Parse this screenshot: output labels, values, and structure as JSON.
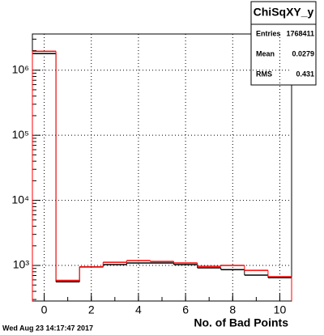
{
  "chart_data": {
    "type": "histogram",
    "title": "ChiSqXY_y",
    "xlabel": "No. of Bad Points",
    "timestamp": "Wed Aug 23 14:17:47 2017",
    "bins": [
      -0.5,
      0.5,
      1.5,
      2.5,
      3.5,
      4.5,
      5.5,
      6.5,
      7.5,
      8.5,
      9.5,
      10.5
    ],
    "series": [
      {
        "color": "#000000",
        "values": [
          1800000,
          560,
          950,
          1030,
          1090,
          1090,
          1030,
          920,
          860,
          710,
          650
        ]
      },
      {
        "color": "#ff0000",
        "values": [
          1950000,
          590,
          950,
          1120,
          1190,
          1150,
          1090,
          970,
          1000,
          840,
          670
        ]
      }
    ],
    "xlim": [
      -0.5,
      10.5
    ],
    "xticks": [
      0,
      2,
      4,
      6,
      8,
      10
    ],
    "ylim": [
      284,
      3600000
    ],
    "log_y": true,
    "grid": true,
    "yticks": [
      {
        "value": 1000,
        "label": "10³"
      },
      {
        "value": 10000,
        "label": "10⁴"
      },
      {
        "value": 100000,
        "label": "10⁵"
      },
      {
        "value": 1000000,
        "label": "10⁶"
      }
    ],
    "stats": [
      {
        "label": "Entries",
        "value": 1768411
      },
      {
        "label": "Mean",
        "value": 0.0279
      },
      {
        "label": "RMS",
        "value": 0.431
      }
    ]
  }
}
